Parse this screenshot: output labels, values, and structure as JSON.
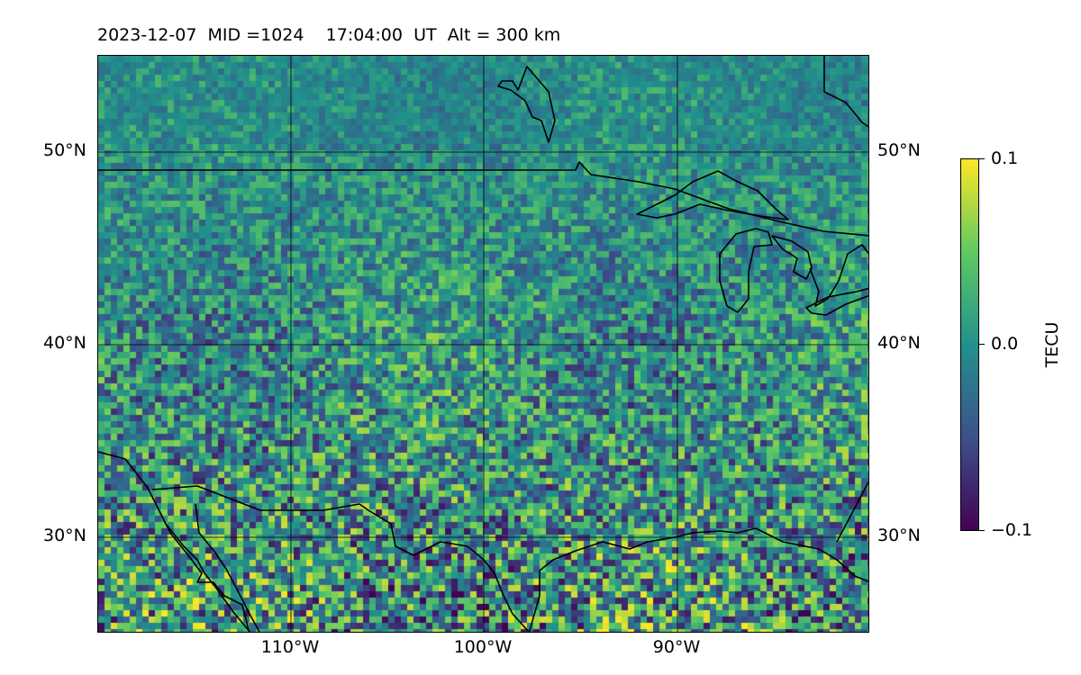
{
  "title": {
    "date": "2023-12-07",
    "mid": "MID =1024",
    "time": "17:04:00",
    "ut": "UT",
    "alt": "Alt = 300 km"
  },
  "map": {
    "region": "North America",
    "lon_range": [
      -120,
      -80
    ],
    "lat_range": [
      25,
      55
    ],
    "lat_labels": [
      "50°N",
      "40°N",
      "30°N"
    ],
    "lon_labels": [
      "110°W",
      "100°W",
      "90°W"
    ],
    "gridlines": true,
    "grid_color": "#000000",
    "coastline_color": "#000000"
  },
  "colorbar": {
    "label": "TECU",
    "colormap": "viridis",
    "min": -0.1,
    "max": 0.1,
    "ticks": [
      "0.1",
      "0.0",
      "−0.1"
    ]
  },
  "colors": {
    "low": "#440154",
    "mid": "#21918c",
    "high": "#fde725"
  }
}
